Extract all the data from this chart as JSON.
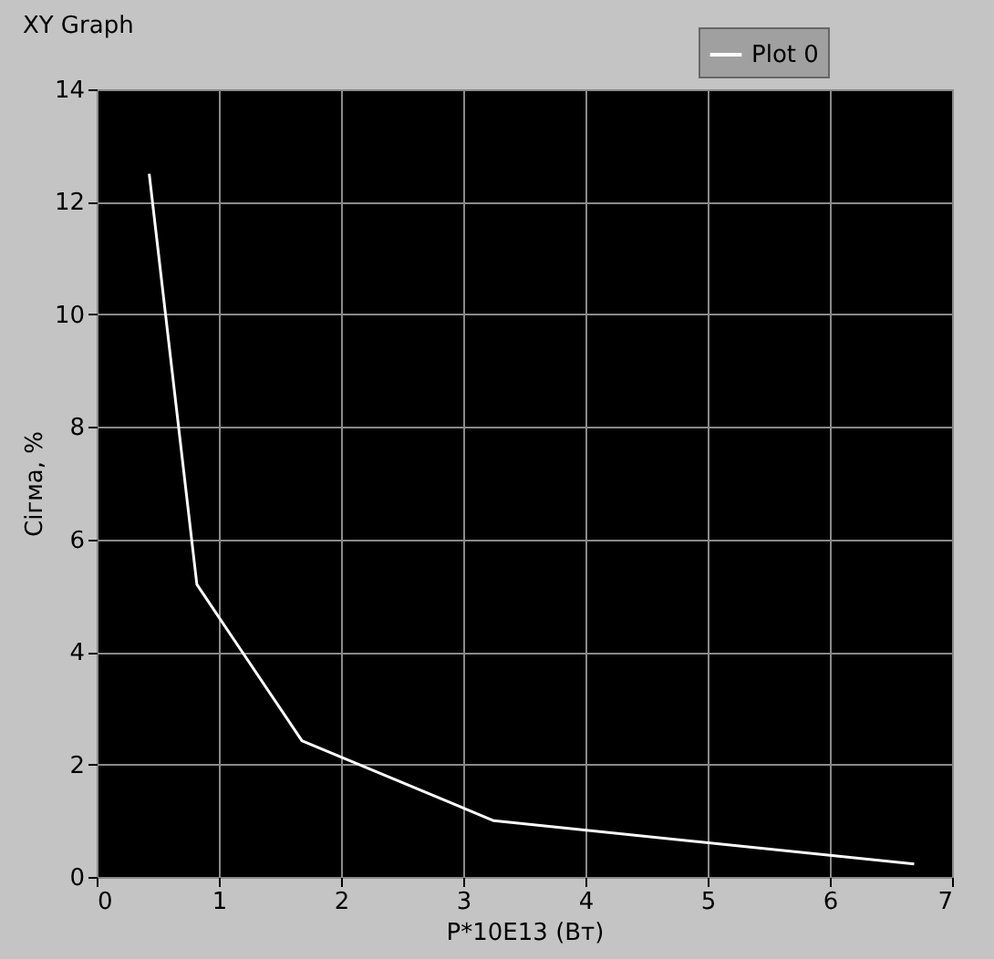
{
  "chart_data": {
    "type": "line",
    "title": "XY Graph",
    "xlabel": "P*10E13 (Вт)",
    "ylabel": "Сігма, %",
    "x": [
      0.43,
      0.82,
      1.68,
      3.25,
      6.69
    ],
    "series": [
      {
        "name": "Plot 0",
        "color": "#ffffff",
        "values": [
          12.5,
          5.2,
          2.42,
          1.0,
          0.23
        ]
      }
    ],
    "xlim": [
      0,
      7
    ],
    "xticks": [
      0,
      1,
      2,
      3,
      4,
      5,
      6,
      7
    ],
    "ylim": [
      0,
      14
    ],
    "yticks": [
      0,
      2,
      4,
      6,
      8,
      10,
      12,
      14
    ],
    "grid": true,
    "legend": "top right",
    "marker": "none",
    "line_style": "solid"
  }
}
